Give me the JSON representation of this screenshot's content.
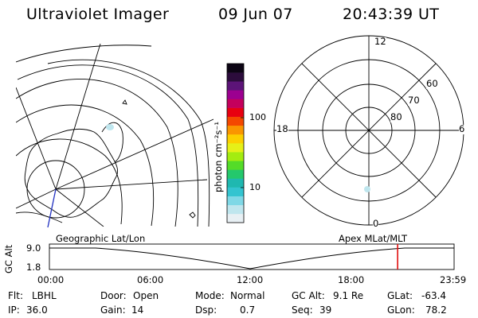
{
  "header": {
    "title": "Ultraviolet Imager",
    "date": "09 Jun 07",
    "time": "20:43:39 UT"
  },
  "colorbar": {
    "unit_label": "photon cm⁻²s⁻¹",
    "ticks": [
      "100",
      "10"
    ],
    "colors": [
      "#e8f0f4",
      "#bfe6ee",
      "#7fd8e6",
      "#33c4d0",
      "#1fb8b0",
      "#24c86c",
      "#54dc28",
      "#a4ec10",
      "#e6f018",
      "#fcd000",
      "#fa9600",
      "#f44800",
      "#e80010",
      "#c4005c",
      "#9c0090",
      "#5c1478",
      "#2c0c3c",
      "#0c0414"
    ]
  },
  "polar": {
    "mlt_labels": {
      "top": "12",
      "bottom": "0",
      "left": "18",
      "right": "6"
    },
    "lat_labels": [
      "60",
      "70",
      "80"
    ]
  },
  "altitude_panel": {
    "left_title": "Geographic Lat/Lon",
    "right_title": "Apex MLat/MLT",
    "y_axis_label": "GC Alt",
    "y_ticks": [
      "9.0",
      "1.8"
    ],
    "x_ticks": [
      "00:00",
      "06:00",
      "12:00",
      "18:00",
      "23:59"
    ],
    "current_time_fraction": 0.8605,
    "marker_color": "#e01010"
  },
  "footer": {
    "row1": [
      {
        "key": "Flt:",
        "value": "LBHL"
      },
      {
        "key": "Door:",
        "value": "Open"
      },
      {
        "key": "Mode:",
        "value": "Normal"
      },
      {
        "key": "GC Alt:",
        "value": "9.1 Re"
      },
      {
        "key": "GLat:",
        "value": "-63.4"
      }
    ],
    "row2": [
      {
        "key": "IP:",
        "value": "36.0"
      },
      {
        "key": "Gain:",
        "value": "14"
      },
      {
        "key": "Dsp:",
        "value": "0.7"
      },
      {
        "key": "Seq:",
        "value": "39"
      },
      {
        "key": "GLon:",
        "value": "78.2"
      }
    ]
  }
}
